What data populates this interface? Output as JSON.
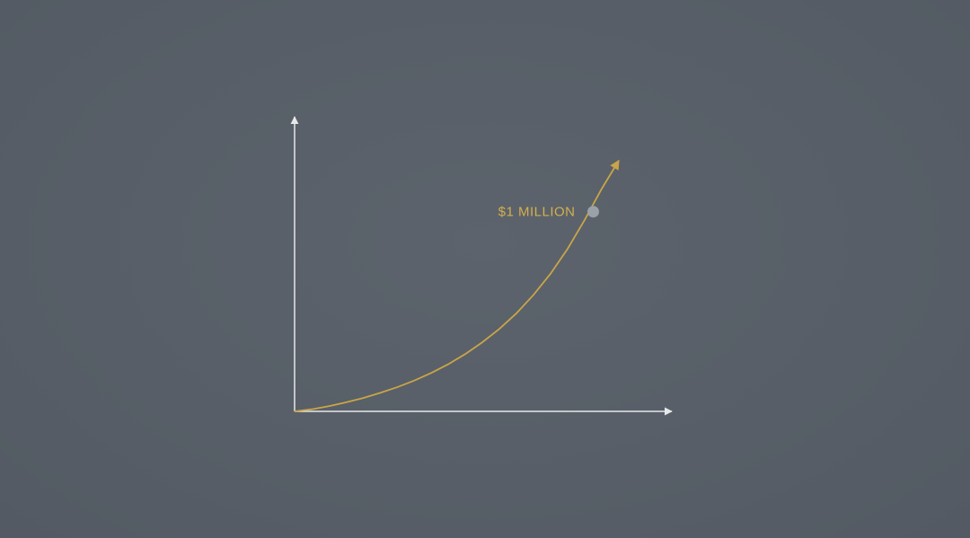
{
  "colors": {
    "background": "#585f68",
    "axis": "#e6e8ea",
    "curve": "#c9a548",
    "marker": "#9aa1a8",
    "label": "#d4b04c"
  },
  "chart_data": {
    "type": "line",
    "title": "",
    "xlabel": "",
    "ylabel": "",
    "xlim": [
      0,
      1
    ],
    "ylim": [
      0,
      1
    ],
    "grid": false,
    "legend": "none",
    "series": [
      {
        "x": [
          0,
          0.05,
          0.1,
          0.15,
          0.2,
          0.25,
          0.3,
          0.35,
          0.4,
          0.45,
          0.5,
          0.55,
          0.6,
          0.65,
          0.7,
          0.75,
          0.8,
          0.85,
          0.9,
          0.95
        ],
        "y": [
          0,
          0.008,
          0.02,
          0.035,
          0.052,
          0.072,
          0.094,
          0.12,
          0.15,
          0.184,
          0.224,
          0.27,
          0.322,
          0.383,
          0.455,
          0.538,
          0.635,
          0.748,
          0.87,
          0.98
        ]
      }
    ],
    "annotations": [
      {
        "text": "$1 MILLION",
        "x": 0.875,
        "y": 0.78
      }
    ]
  }
}
